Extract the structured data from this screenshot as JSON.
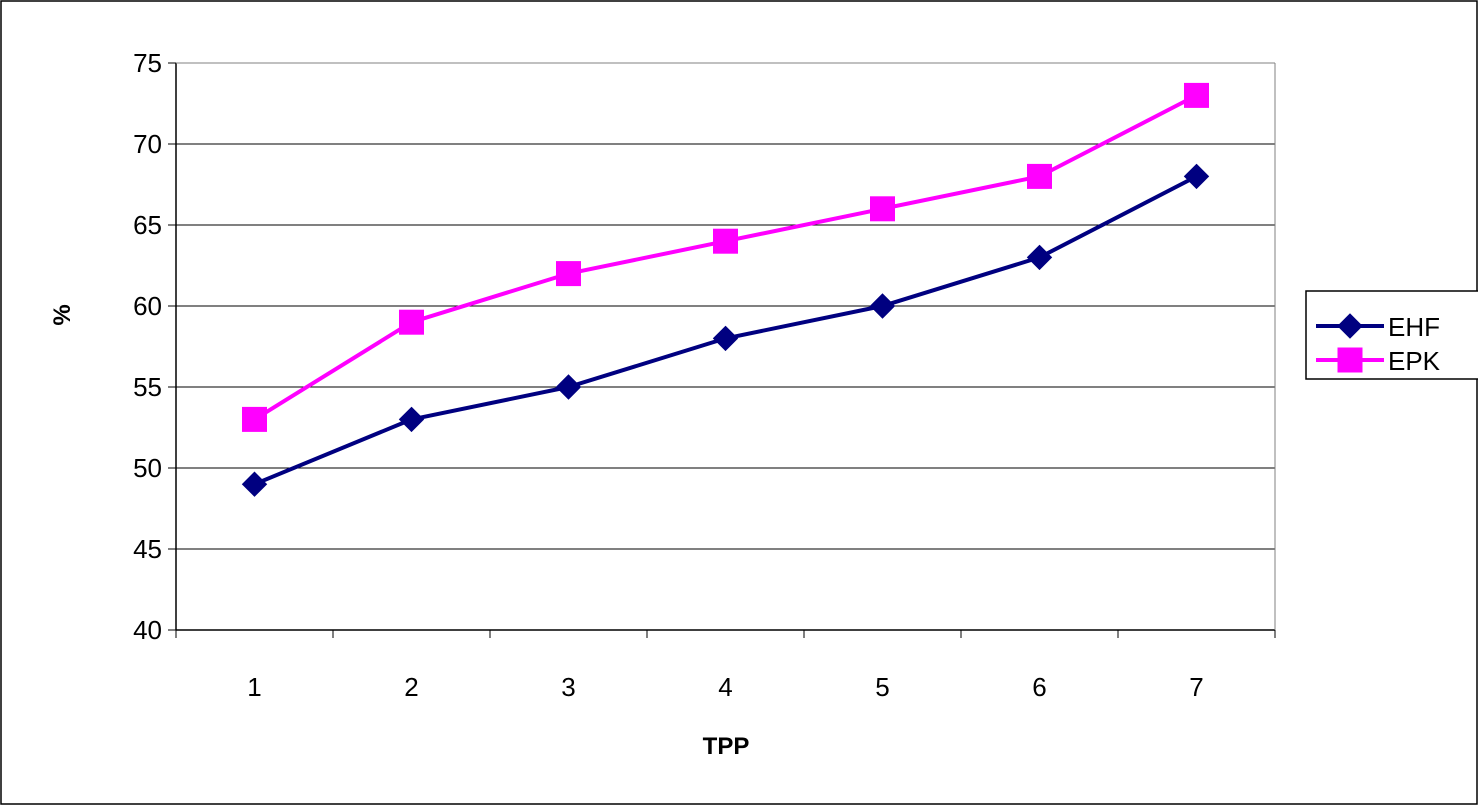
{
  "chart_data": {
    "type": "line",
    "title": "",
    "xlabel": "TPP",
    "ylabel": "%",
    "x": [
      "1",
      "2",
      "3",
      "4",
      "5",
      "6",
      "7"
    ],
    "ylim": [
      40,
      75
    ],
    "yticks": [
      "40",
      "45",
      "50",
      "55",
      "60",
      "65",
      "70",
      "75"
    ],
    "grid": "horizontal",
    "legend_position": "right",
    "series": [
      {
        "name": "EHF",
        "values": [
          49,
          53,
          55,
          58,
          60,
          63,
          68
        ],
        "color": "#000080",
        "marker": "diamond"
      },
      {
        "name": "EPK",
        "values": [
          53,
          59,
          62,
          64,
          66,
          68,
          73
        ],
        "color": "#FF00FF",
        "marker": "square"
      }
    ]
  }
}
